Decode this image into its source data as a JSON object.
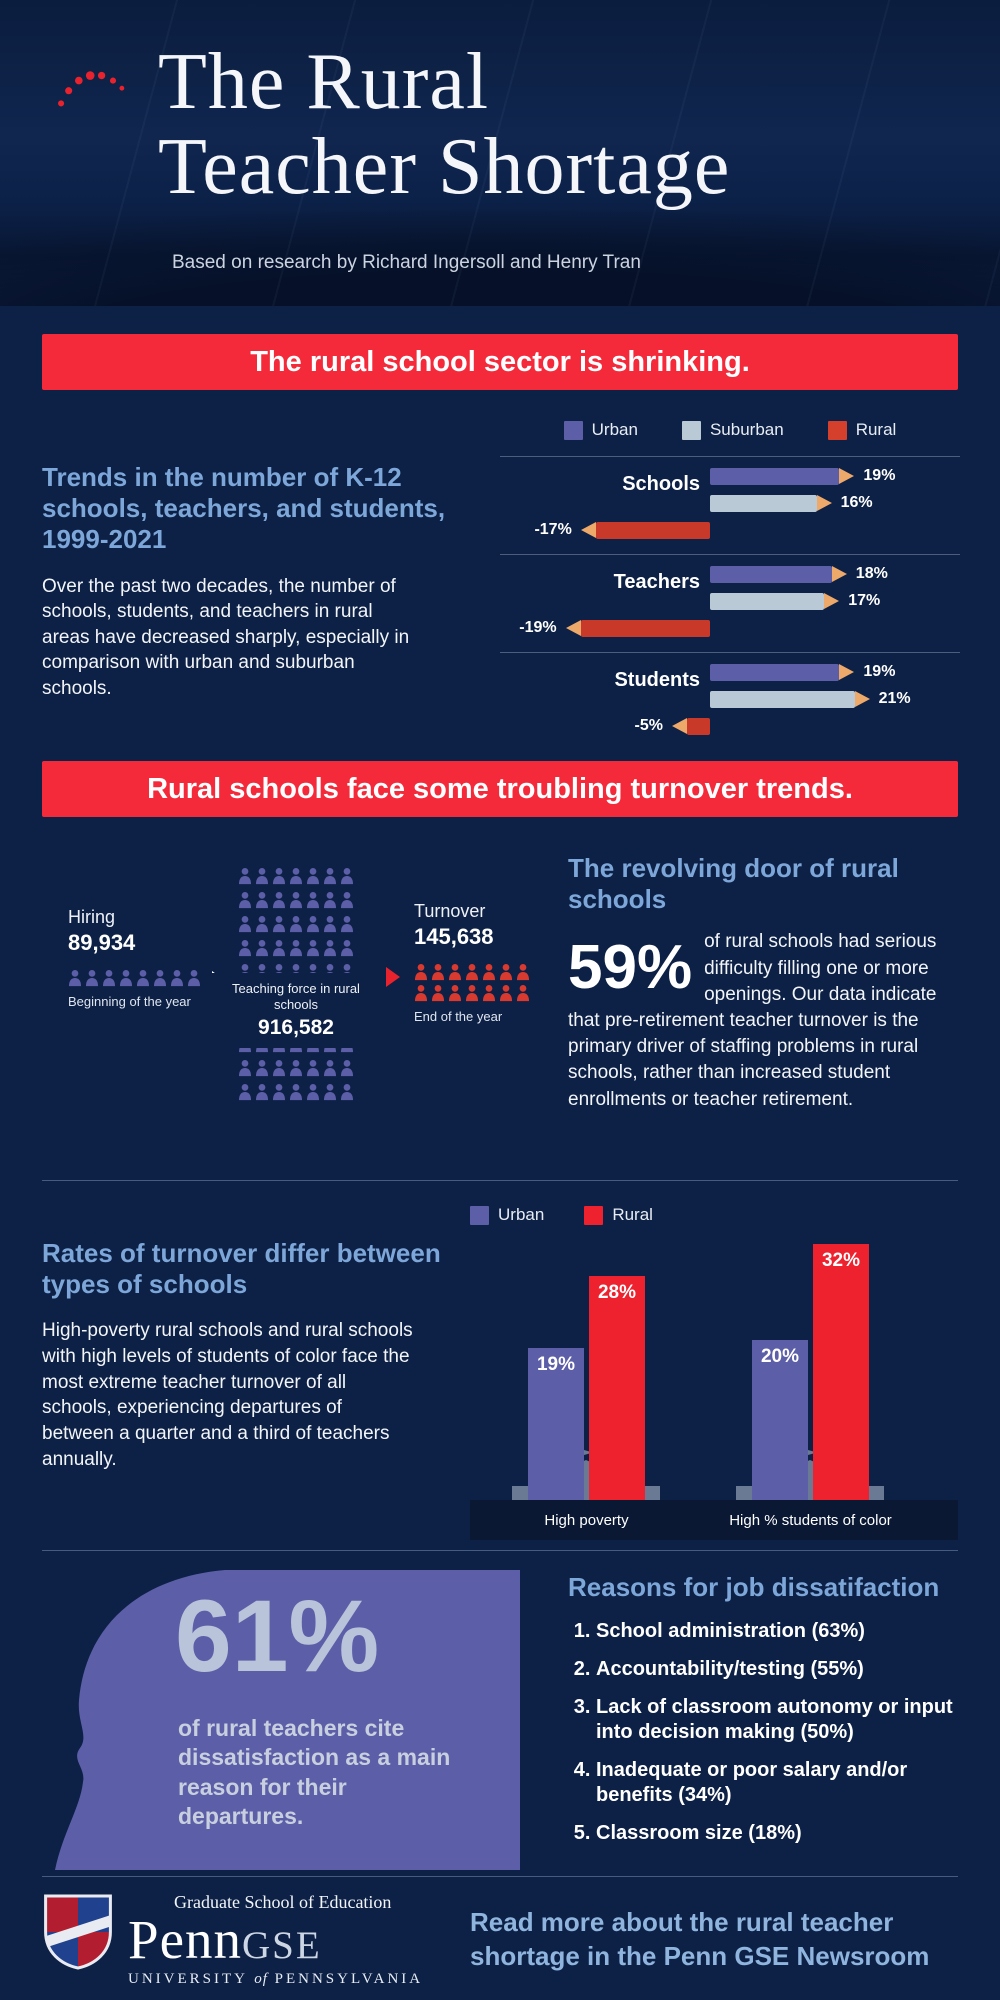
{
  "header": {
    "title_line1": "The Rural",
    "title_line2": "Teacher Shortage",
    "subtitle": "Based on research by Richard Ingersoll and Henry Tran"
  },
  "banner1": {
    "text": "The rural school sector is shrinking."
  },
  "banner2": {
    "text": "Rural schools face some troubling turnover trends."
  },
  "section_trends": {
    "heading": "Trends in the number of K-12 schools, teachers, and students, 1999-2021",
    "body": "Over the past two decades, the number of schools, students, and teachers in rural areas have decreased sharply, especially in comparison with urban and suburban schools.",
    "legend": [
      {
        "label": "Urban",
        "color": "#5c5fa8"
      },
      {
        "label": "Suburban",
        "color": "#b9cad6"
      },
      {
        "label": "Rural",
        "color": "#d5402c"
      }
    ]
  },
  "chart_data": [
    {
      "type": "bar",
      "orientation": "horizontal",
      "title": "Trends in the number of K-12 schools, teachers, and students, 1999-2021",
      "categories": [
        "Schools",
        "Teachers",
        "Students"
      ],
      "series": [
        {
          "name": "Urban",
          "values": [
            19,
            18,
            19
          ]
        },
        {
          "name": "Suburban",
          "values": [
            16,
            17,
            21
          ]
        },
        {
          "name": "Rural",
          "values": [
            -17,
            -19,
            -5
          ]
        }
      ],
      "value_suffix": "%",
      "legend_position": "top",
      "grid": false
    },
    {
      "type": "bar",
      "orientation": "vertical",
      "title": "Rates of turnover differ between types of schools",
      "categories": [
        "High poverty",
        "High % students of color"
      ],
      "series": [
        {
          "name": "Urban",
          "values": [
            19,
            20
          ]
        },
        {
          "name": "Rural",
          "values": [
            28,
            32
          ]
        }
      ],
      "value_suffix": "%",
      "legend_position": "top",
      "grid": false,
      "ylim": [
        0,
        35
      ]
    }
  ],
  "pictogram": {
    "hiring_label": "Hiring",
    "hiring_value": "89,934",
    "hiring_caption": "Beginning of the year",
    "hiring_icon_count": 8,
    "force_label": "Teaching force in rural schools",
    "force_value": "916,582",
    "force_icon_count": 70,
    "turnover_label": "Turnover",
    "turnover_value": "145,638",
    "turnover_caption": "End of the year",
    "turnover_icon_count": 14
  },
  "revolving": {
    "heading": "The revolving door of rural schools",
    "stat": "59%",
    "body": "of rural schools had serious difficulty filling one or more openings. Our data indicate that pre-retirement teacher turnover is the primary driver of staffing problems in rural schools, rather than increased student enrollments or teacher retirement."
  },
  "turnover_rates": {
    "heading": "Rates of turnover differ between types of schools",
    "body": "High-poverty rural schools and rural schools with high levels of students of color face the most extreme teacher turnover of all schools, experiencing departures of between a quarter and a third of teachers annually.",
    "legend": [
      {
        "label": "Urban",
        "color": "#5c5fa8"
      },
      {
        "label": "Rural",
        "color": "#ee212e"
      }
    ]
  },
  "dissatisfaction": {
    "stat": "61%",
    "caption": "of rural teachers cite dissatisfaction as a main reason for their departures.",
    "heading": "Reasons for job dissatifaction",
    "items": [
      "School administration (63%)",
      "Accountability/testing (55%)",
      "Lack of classroom autonomy or input into decision making (50%)",
      "Inadequate or poor salary and/or benefits (34%)",
      "Classroom size (18%)"
    ]
  },
  "footer": {
    "logo_top": "Graduate School of Education",
    "penn": "Penn",
    "gse": "GSE",
    "univ_1": "UNIVERSITY",
    "univ_of": "of",
    "univ_2": "PENNSYLVANIA",
    "cta": "Read more about the rural teacher shortage in the Penn GSE Newsroom"
  },
  "colors": {
    "navy": "#0d2045",
    "banner_red": "#f42a3b",
    "urban": "#5c5fa8",
    "suburban": "#b9cad6",
    "rural": "#ee212e",
    "rural_pencil": "#c9392a",
    "rural_icons": "#d93a30",
    "purple": "#5c5fa8",
    "tip_tan": "#eda96a",
    "heading_blue": "#7da7d9",
    "steel": "#b9c3da",
    "cta_blue": "#8fb4dd"
  }
}
